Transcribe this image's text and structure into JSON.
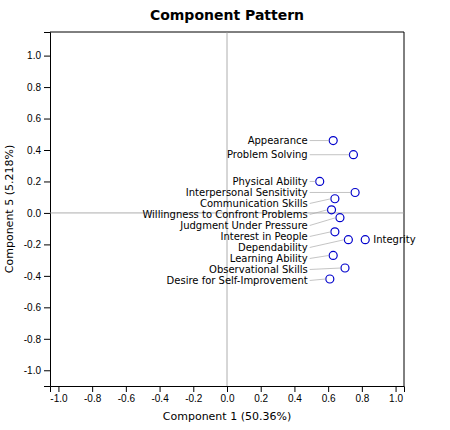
{
  "chart_data": {
    "type": "scatter",
    "title": "Component Pattern",
    "xlabel": "Component 1 (50.36%)",
    "ylabel": "Component 5 (5.218%)",
    "xlim": [
      -1.05,
      1.05
    ],
    "ylim": [
      -1.1,
      1.15
    ],
    "xticks": [
      {
        "value": -1.0,
        "label": "-1.0"
      },
      -0.8,
      -0.6,
      -0.4,
      -0.2,
      {
        "value": 0.0,
        "label": "0.0"
      },
      0.2,
      0.4,
      0.6,
      0.8,
      {
        "value": 1.0,
        "label": "1.0"
      }
    ],
    "yticks": [
      {
        "value": -1.0,
        "label": "-1.0"
      },
      -0.8,
      -0.6,
      -0.4,
      -0.2,
      {
        "value": 0.0,
        "label": "0.0"
      },
      0.2,
      0.4,
      0.6,
      0.8,
      {
        "value": 1.0,
        "label": "1.0"
      }
    ],
    "labels": [
      "Appearance",
      "Problem Solving",
      "Physical Ability",
      "Interpersonal Sensitivity",
      "Communication Skills",
      "Willingness to Confront Problems",
      "Judgment Under Pressure",
      "Interest in People",
      "Dependability",
      "Integrity",
      "Learning Ability",
      "Observational Skills",
      "Desire for Self-Improvement"
    ],
    "x": [
      0.63,
      0.75,
      0.55,
      0.76,
      0.64,
      0.62,
      0.67,
      0.64,
      0.72,
      0.82,
      0.63,
      0.7,
      0.61
    ],
    "values": [
      0.46,
      0.37,
      0.2,
      0.13,
      0.09,
      0.02,
      -0.03,
      -0.12,
      -0.17,
      -0.17,
      -0.27,
      -0.35,
      -0.42
    ],
    "color": "#0000cc",
    "marker": "open-circle"
  }
}
